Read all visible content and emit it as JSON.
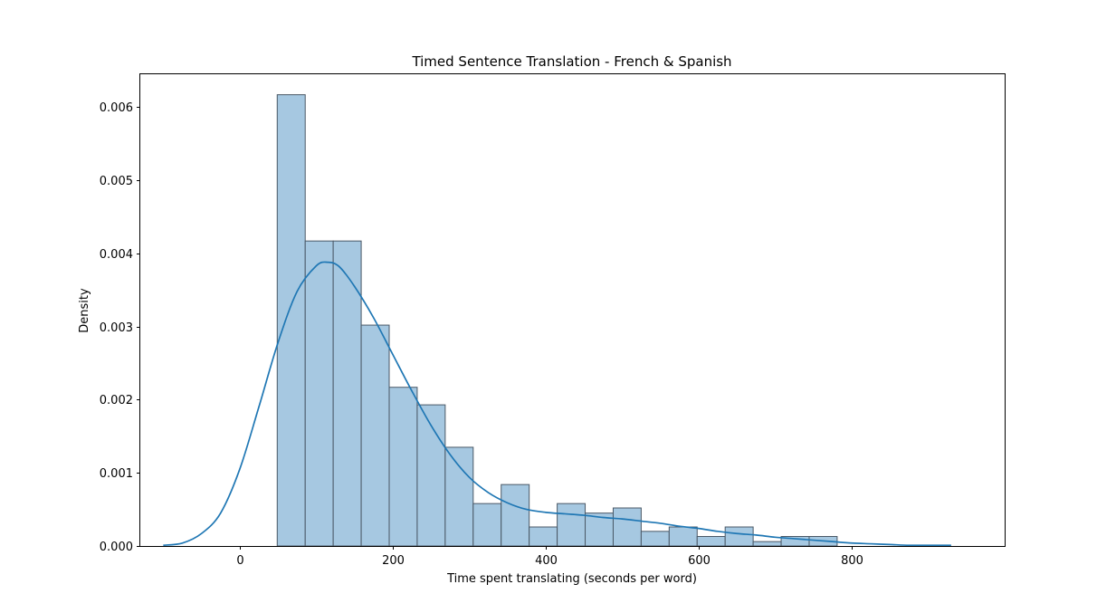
{
  "chart_data": {
    "type": "histogram",
    "title": "Timed Sentence Translation - French & Spanish",
    "xlabel": "Time spent translating (seconds per word)",
    "ylabel": "Density",
    "xlim": [
      -130,
      1000
    ],
    "ylim": [
      0,
      0.00645
    ],
    "x_ticks": [
      0,
      200,
      400,
      600,
      800
    ],
    "x_tick_labels": [
      "0",
      "200",
      "400",
      "600",
      "800"
    ],
    "y_ticks": [
      0,
      0.001,
      0.002,
      0.003,
      0.004,
      0.005,
      0.006
    ],
    "y_tick_labels": [
      "0.000",
      "0.001",
      "0.002",
      "0.003",
      "0.004",
      "0.005",
      "0.006"
    ],
    "grid": false,
    "histogram": {
      "bin_edges": [
        49,
        85.6,
        122.2,
        158.8,
        195.4,
        232,
        268.6,
        305.2,
        341.8,
        378.4,
        415,
        451.6,
        488.2,
        524.8,
        561.4,
        598,
        634.6,
        671.2,
        707.8,
        744.4,
        781
      ],
      "densities": [
        0.00617,
        0.00417,
        0.00417,
        0.00302,
        0.00217,
        0.00193,
        0.00135,
        0.00058,
        0.00084,
        0.00026,
        0.00058,
        0.00045,
        0.00052,
        0.0002,
        0.00026,
        0.00013,
        0.00026,
        6e-05,
        0.00013,
        0.00013
      ],
      "fill_color": "#a6c8e1",
      "edge_color": "#4a5866"
    },
    "kde": {
      "color": "#1f77b4",
      "x": [
        -100,
        -75,
        -50,
        -25,
        0,
        25,
        50,
        75,
        100,
        115,
        130,
        150,
        175,
        200,
        225,
        250,
        275,
        300,
        325,
        350,
        375,
        400,
        425,
        450,
        475,
        500,
        525,
        550,
        575,
        600,
        625,
        650,
        675,
        700,
        725,
        750,
        775,
        800,
        825,
        850,
        875,
        900,
        930
      ],
      "y": [
        1e-05,
        4e-05,
        0.00017,
        0.00045,
        0.00105,
        0.0019,
        0.00278,
        0.00348,
        0.00383,
        0.00388,
        0.00382,
        0.00355,
        0.00312,
        0.00262,
        0.00212,
        0.00165,
        0.00125,
        0.00094,
        0.00073,
        0.00059,
        0.0005,
        0.00046,
        0.00044,
        0.00042,
        0.00039,
        0.00037,
        0.00034,
        0.00031,
        0.00027,
        0.00024,
        0.0002,
        0.00017,
        0.00015,
        0.00012,
        0.0001,
        8e-05,
        6e-05,
        4e-05,
        3e-05,
        2e-05,
        1e-05,
        1e-05,
        1e-05
      ]
    }
  }
}
